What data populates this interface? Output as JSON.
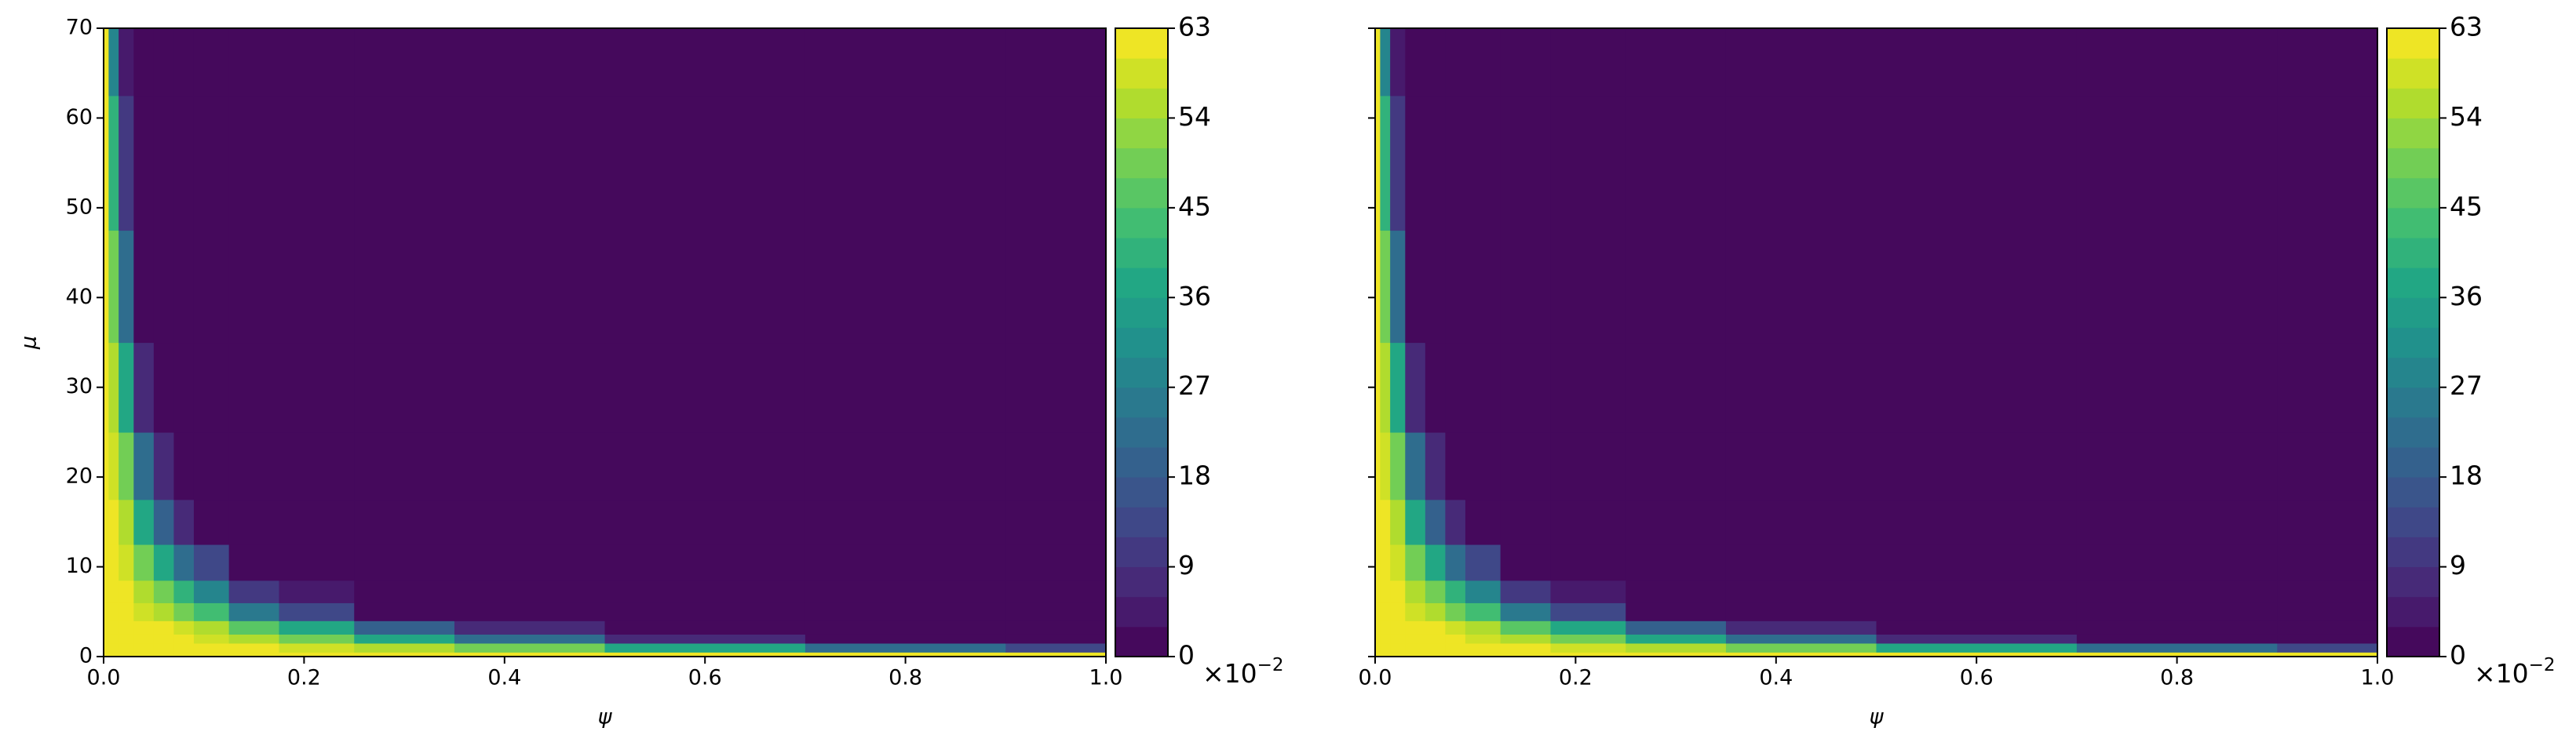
{
  "chart_data": [
    {
      "type": "contour",
      "xlabel": "ψ",
      "ylabel": "μ",
      "colormap": "viridis",
      "x": [
        0,
        0.01,
        0.02,
        0.04,
        0.06,
        0.08,
        0.1,
        0.15,
        0.2,
        0.3,
        0.4,
        0.6,
        0.8,
        1.0
      ],
      "y": [
        0,
        1,
        2,
        3,
        5,
        7,
        10,
        15,
        20,
        30,
        40,
        55,
        70
      ],
      "z": [
        [
          63,
          63,
          63,
          63,
          63,
          63,
          63,
          63,
          63,
          63,
          63,
          63,
          63,
          63
        ],
        [
          63,
          63,
          63,
          63,
          63,
          62,
          62,
          61,
          59,
          55,
          49,
          36,
          23,
          13
        ],
        [
          63,
          63,
          63,
          62,
          62,
          61,
          59,
          55,
          49,
          36,
          23,
          7,
          1,
          0
        ],
        [
          63,
          63,
          63,
          62,
          60,
          58,
          55,
          46,
          36,
          18,
          7,
          0,
          0,
          0
        ],
        [
          63,
          63,
          62,
          59,
          55,
          49,
          43,
          26,
          13,
          2,
          0,
          0,
          0,
          0
        ],
        [
          63,
          63,
          61,
          56,
          48,
          39,
          29,
          11,
          3,
          0,
          0,
          0,
          0,
          0
        ],
        [
          63,
          62,
          59,
          49,
          36,
          23,
          13,
          2,
          0,
          0,
          0,
          0,
          0,
          0
        ],
        [
          63,
          61,
          55,
          36,
          18,
          7,
          2,
          0,
          0,
          0,
          0,
          0,
          0,
          0
        ],
        [
          63,
          59,
          49,
          23,
          7,
          1,
          0,
          0,
          0,
          0,
          0,
          0,
          0,
          0
        ],
        [
          63,
          55,
          36,
          7,
          0,
          0,
          0,
          0,
          0,
          0,
          0,
          0,
          0,
          0
        ],
        [
          63,
          49,
          23,
          1,
          0,
          0,
          0,
          0,
          0,
          0,
          0,
          0,
          0,
          0
        ],
        [
          63,
          39,
          10,
          0,
          0,
          0,
          0,
          0,
          0,
          0,
          0,
          0,
          0,
          0
        ],
        [
          63,
          29,
          3,
          0,
          0,
          0,
          0,
          0,
          0,
          0,
          0,
          0,
          0,
          0
        ]
      ],
      "levels": [
        0,
        3,
        6,
        9,
        12,
        15,
        18,
        21,
        24,
        27,
        30,
        33,
        36,
        39,
        42,
        45,
        48,
        51,
        54,
        57,
        60,
        63
      ],
      "xlim": [
        0,
        1.0
      ],
      "ylim": [
        0,
        70
      ],
      "xticks": [
        {
          "value": 0,
          "label": "0.0"
        },
        0.2,
        0.4,
        0.6,
        0.8,
        {
          "value": 1.0,
          "label": "1.0"
        }
      ],
      "yticks": [
        0,
        10,
        20,
        30,
        40,
        50,
        60,
        70
      ],
      "yticklabels": true,
      "clim": [
        0,
        63
      ],
      "cticks": [
        0,
        9,
        18,
        27,
        36,
        45,
        54,
        63
      ],
      "colorbar_offset": {
        "base": "×10",
        "exponent": "−2"
      }
    },
    {
      "type": "contour",
      "xlabel": "ψ",
      "colormap": "viridis",
      "x": [
        0,
        0.01,
        0.02,
        0.04,
        0.06,
        0.08,
        0.1,
        0.15,
        0.2,
        0.3,
        0.4,
        0.6,
        0.8,
        1.0
      ],
      "y": [
        0,
        1,
        2,
        3,
        5,
        7,
        10,
        15,
        20,
        30,
        40,
        55,
        70
      ],
      "z": [
        [
          63,
          63,
          63,
          63,
          63,
          63,
          63,
          63,
          63,
          63,
          63,
          63,
          63,
          63
        ],
        [
          63,
          63,
          63,
          63,
          63,
          62,
          62,
          61,
          59,
          55,
          49,
          36,
          23,
          13
        ],
        [
          63,
          63,
          63,
          62,
          62,
          61,
          59,
          55,
          49,
          36,
          23,
          7,
          1,
          0
        ],
        [
          63,
          63,
          63,
          62,
          60,
          58,
          55,
          46,
          36,
          18,
          7,
          0,
          0,
          0
        ],
        [
          63,
          63,
          62,
          59,
          55,
          49,
          43,
          26,
          13,
          2,
          0,
          0,
          0,
          0
        ],
        [
          63,
          63,
          61,
          56,
          48,
          39,
          29,
          11,
          3,
          0,
          0,
          0,
          0,
          0
        ],
        [
          63,
          62,
          59,
          49,
          36,
          23,
          13,
          2,
          0,
          0,
          0,
          0,
          0,
          0
        ],
        [
          63,
          61,
          55,
          36,
          18,
          7,
          2,
          0,
          0,
          0,
          0,
          0,
          0,
          0
        ],
        [
          63,
          59,
          49,
          23,
          7,
          1,
          0,
          0,
          0,
          0,
          0,
          0,
          0,
          0
        ],
        [
          63,
          55,
          36,
          7,
          0,
          0,
          0,
          0,
          0,
          0,
          0,
          0,
          0,
          0
        ],
        [
          63,
          49,
          23,
          1,
          0,
          0,
          0,
          0,
          0,
          0,
          0,
          0,
          0,
          0
        ],
        [
          63,
          39,
          10,
          0,
          0,
          0,
          0,
          0,
          0,
          0,
          0,
          0,
          0,
          0
        ],
        [
          63,
          29,
          3,
          0,
          0,
          0,
          0,
          0,
          0,
          0,
          0,
          0,
          0,
          0
        ]
      ],
      "levels": [
        0,
        3,
        6,
        9,
        12,
        15,
        18,
        21,
        24,
        27,
        30,
        33,
        36,
        39,
        42,
        45,
        48,
        51,
        54,
        57,
        60,
        63
      ],
      "xlim": [
        0,
        1.0
      ],
      "ylim": [
        0,
        70
      ],
      "xticks": [
        {
          "value": 0,
          "label": "0.0"
        },
        0.2,
        0.4,
        0.6,
        0.8,
        {
          "value": 1.0,
          "label": "1.0"
        }
      ],
      "yticks": [
        0,
        10,
        20,
        30,
        40,
        50,
        60,
        70
      ],
      "yticklabels": false,
      "clim": [
        0,
        63
      ],
      "cticks": [
        0,
        9,
        18,
        27,
        36,
        45,
        54,
        63
      ],
      "colorbar_offset": {
        "base": "×10",
        "exponent": "−2"
      }
    }
  ]
}
